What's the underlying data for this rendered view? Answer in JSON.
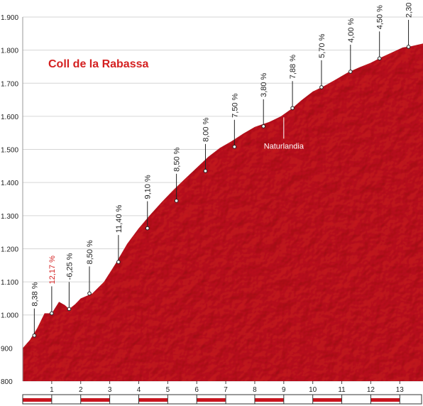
{
  "chart_data": {
    "type": "area",
    "title": "Coll de la Rabassa",
    "xlim": [
      0,
      13.8
    ],
    "ylim": [
      800,
      1900
    ],
    "y_ticks": [
      800,
      900,
      1000,
      1100,
      1200,
      1300,
      1400,
      1500,
      1600,
      1700,
      1800,
      1900
    ],
    "y_tick_labels": [
      "800",
      "900",
      "1.000",
      "1.100",
      "1.200",
      "1.300",
      "1.400",
      "1.500",
      "1.600",
      "1.700",
      "1.800",
      "1.900"
    ],
    "x_ticks": [
      1,
      2,
      3,
      4,
      5,
      6,
      7,
      8,
      9,
      10,
      11,
      12,
      13
    ],
    "x_tick_labels": [
      "1",
      "2",
      "3",
      "4",
      "5",
      "6",
      "7",
      "8",
      "9",
      "10",
      "11",
      "12",
      "13"
    ],
    "grid": true,
    "fill_color": "#c8141e",
    "highlight_color": "#d42020",
    "profile": {
      "x": [
        0,
        0.25,
        0.5,
        0.75,
        1.0,
        1.25,
        1.45,
        1.6,
        1.8,
        2.0,
        2.4,
        2.8,
        3.2,
        3.6,
        4.0,
        4.4,
        4.8,
        5.2,
        5.6,
        6.0,
        6.4,
        6.8,
        7.2,
        7.6,
        8.0,
        8.5,
        8.9,
        9.3,
        9.6,
        10.0,
        10.4,
        10.8,
        11.2,
        11.6,
        12.0,
        12.4,
        12.8,
        13.1,
        13.4,
        13.8
      ],
      "elevation": [
        900,
        925,
        960,
        1005,
        1005,
        1040,
        1030,
        1018,
        1032,
        1050,
        1065,
        1100,
        1155,
        1215,
        1262,
        1303,
        1342,
        1378,
        1412,
        1445,
        1478,
        1505,
        1525,
        1548,
        1568,
        1583,
        1600,
        1625,
        1648,
        1675,
        1692,
        1712,
        1732,
        1748,
        1762,
        1780,
        1796,
        1808,
        1812,
        1820
      ]
    },
    "gradients": [
      {
        "x": 0.4,
        "elevation": 938,
        "label": "8,38 %",
        "highlight": false
      },
      {
        "x": 1.0,
        "elevation": 1005,
        "label": "12,17 %",
        "highlight": true
      },
      {
        "x": 1.6,
        "elevation": 1018,
        "label": "-6,25 %",
        "highlight": false
      },
      {
        "x": 2.3,
        "elevation": 1065,
        "label": "8,50 %",
        "highlight": false
      },
      {
        "x": 3.3,
        "elevation": 1160,
        "label": "11,40 %",
        "highlight": false
      },
      {
        "x": 4.3,
        "elevation": 1262,
        "label": "9,10 %",
        "highlight": false
      },
      {
        "x": 5.3,
        "elevation": 1345,
        "label": "8,50 %",
        "highlight": false
      },
      {
        "x": 6.3,
        "elevation": 1435,
        "label": "8,00 %",
        "highlight": false
      },
      {
        "x": 7.3,
        "elevation": 1508,
        "label": "7,50 %",
        "highlight": false
      },
      {
        "x": 8.3,
        "elevation": 1570,
        "label": "3,80 %",
        "highlight": false
      },
      {
        "x": 9.3,
        "elevation": 1625,
        "label": "7,88 %",
        "highlight": false
      },
      {
        "x": 10.3,
        "elevation": 1688,
        "label": "5,70 %",
        "highlight": false
      },
      {
        "x": 11.3,
        "elevation": 1735,
        "label": "4,00 %",
        "highlight": false
      },
      {
        "x": 12.3,
        "elevation": 1775,
        "label": "4,50 %",
        "highlight": false
      },
      {
        "x": 13.3,
        "elevation": 1810,
        "label": "2,30 %",
        "highlight": false
      }
    ],
    "annotations": [
      {
        "x": 9.0,
        "elevation": 1597,
        "label": "Naturlandia"
      }
    ]
  }
}
